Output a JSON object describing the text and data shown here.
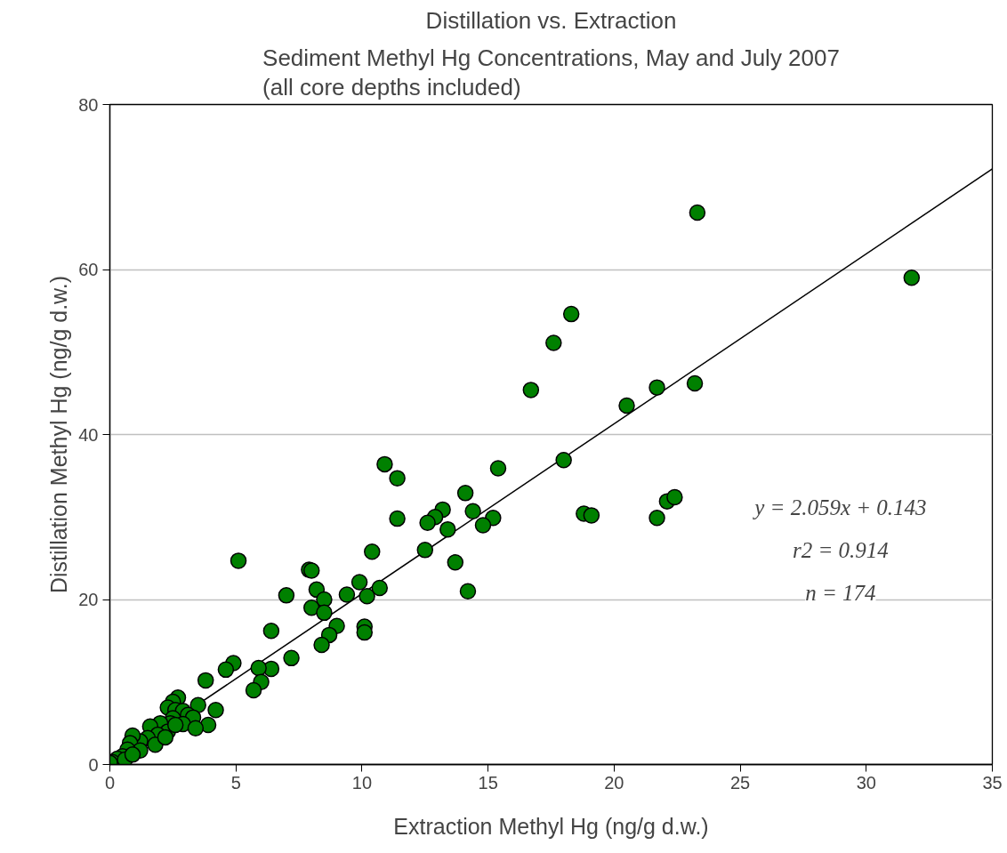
{
  "chart_data": {
    "type": "scatter",
    "title": "Distillation vs. Extraction",
    "subtitle": "Sediment Methyl Hg Concentrations, May and July 2007\n(all core depths included)",
    "xlabel": "Extraction Methyl Hg (ng/g d.w.)",
    "ylabel": "Distillation Methyl Hg (ng/g d.w.)",
    "xlim": [
      0,
      35
    ],
    "ylim": [
      0,
      80
    ],
    "xticks": [
      0,
      5,
      10,
      15,
      20,
      25,
      30,
      35
    ],
    "yticks": [
      0,
      20,
      40,
      60,
      80
    ],
    "grid": "y",
    "marker": "circle",
    "series": [
      {
        "color": "#008000",
        "x": [
          23.3,
          31.8,
          18.3,
          17.6,
          16.7,
          20.5,
          21.7,
          23.2,
          18.0,
          15.4,
          10.9,
          11.4,
          14.1,
          13.2,
          12.9,
          12.6,
          11.4,
          14.4,
          15.2,
          14.8,
          13.4,
          18.8,
          19.1,
          21.7,
          22.1,
          22.4,
          12.5,
          10.4,
          13.7,
          14.2,
          5.1,
          7.9,
          8.0,
          9.9,
          10.7,
          8.2,
          7.0,
          9.4,
          10.2,
          8.5,
          8.0,
          8.5,
          10.1,
          10.1,
          9.0,
          8.7,
          8.4,
          6.4,
          7.2,
          6.4,
          5.9,
          6.0,
          5.7,
          4.9,
          4.6,
          3.8,
          4.2,
          3.9,
          3.5,
          2.7,
          2.5,
          2.3,
          2.6,
          2.9,
          3.1,
          3.3,
          2.5,
          2.4,
          2.0,
          1.6,
          2.9,
          3.4,
          2.3,
          1.9,
          1.5,
          1.2,
          0.9,
          0.8,
          1.8,
          1.2,
          0.7,
          0.5,
          0.3,
          0.1,
          0.0,
          0.6,
          0.9,
          2.2,
          2.6
        ],
        "values": [
          66.9,
          59.0,
          54.6,
          51.1,
          45.4,
          43.5,
          45.7,
          46.2,
          36.9,
          35.9,
          36.4,
          34.7,
          32.9,
          30.9,
          30.0,
          29.3,
          29.8,
          30.7,
          29.9,
          29.0,
          28.5,
          30.4,
          30.2,
          29.9,
          31.9,
          32.4,
          26.0,
          25.8,
          24.5,
          21.0,
          24.7,
          23.6,
          23.5,
          22.1,
          21.4,
          21.2,
          20.5,
          20.6,
          20.4,
          20.0,
          19.0,
          18.4,
          16.7,
          16.0,
          16.8,
          15.7,
          14.5,
          16.2,
          12.9,
          11.6,
          11.7,
          10.0,
          9.0,
          12.3,
          11.5,
          10.2,
          6.6,
          4.8,
          7.2,
          8.1,
          7.6,
          6.9,
          6.6,
          6.5,
          6.0,
          5.7,
          5.6,
          5.0,
          5.0,
          4.6,
          4.9,
          4.4,
          4.0,
          3.6,
          3.2,
          2.8,
          3.5,
          2.6,
          2.4,
          1.7,
          1.8,
          1.0,
          0.7,
          0.3,
          0.2,
          0.6,
          1.2,
          3.3,
          4.8
        ]
      },
      {
        "type": "line",
        "marker": "none",
        "color": "#000000",
        "x": [
          0,
          35
        ],
        "values": [
          0.1,
          72.2
        ]
      }
    ],
    "annotations": [
      "y = 2.059x + 0.143",
      "r2 = 0.914",
      "n = 174"
    ]
  }
}
